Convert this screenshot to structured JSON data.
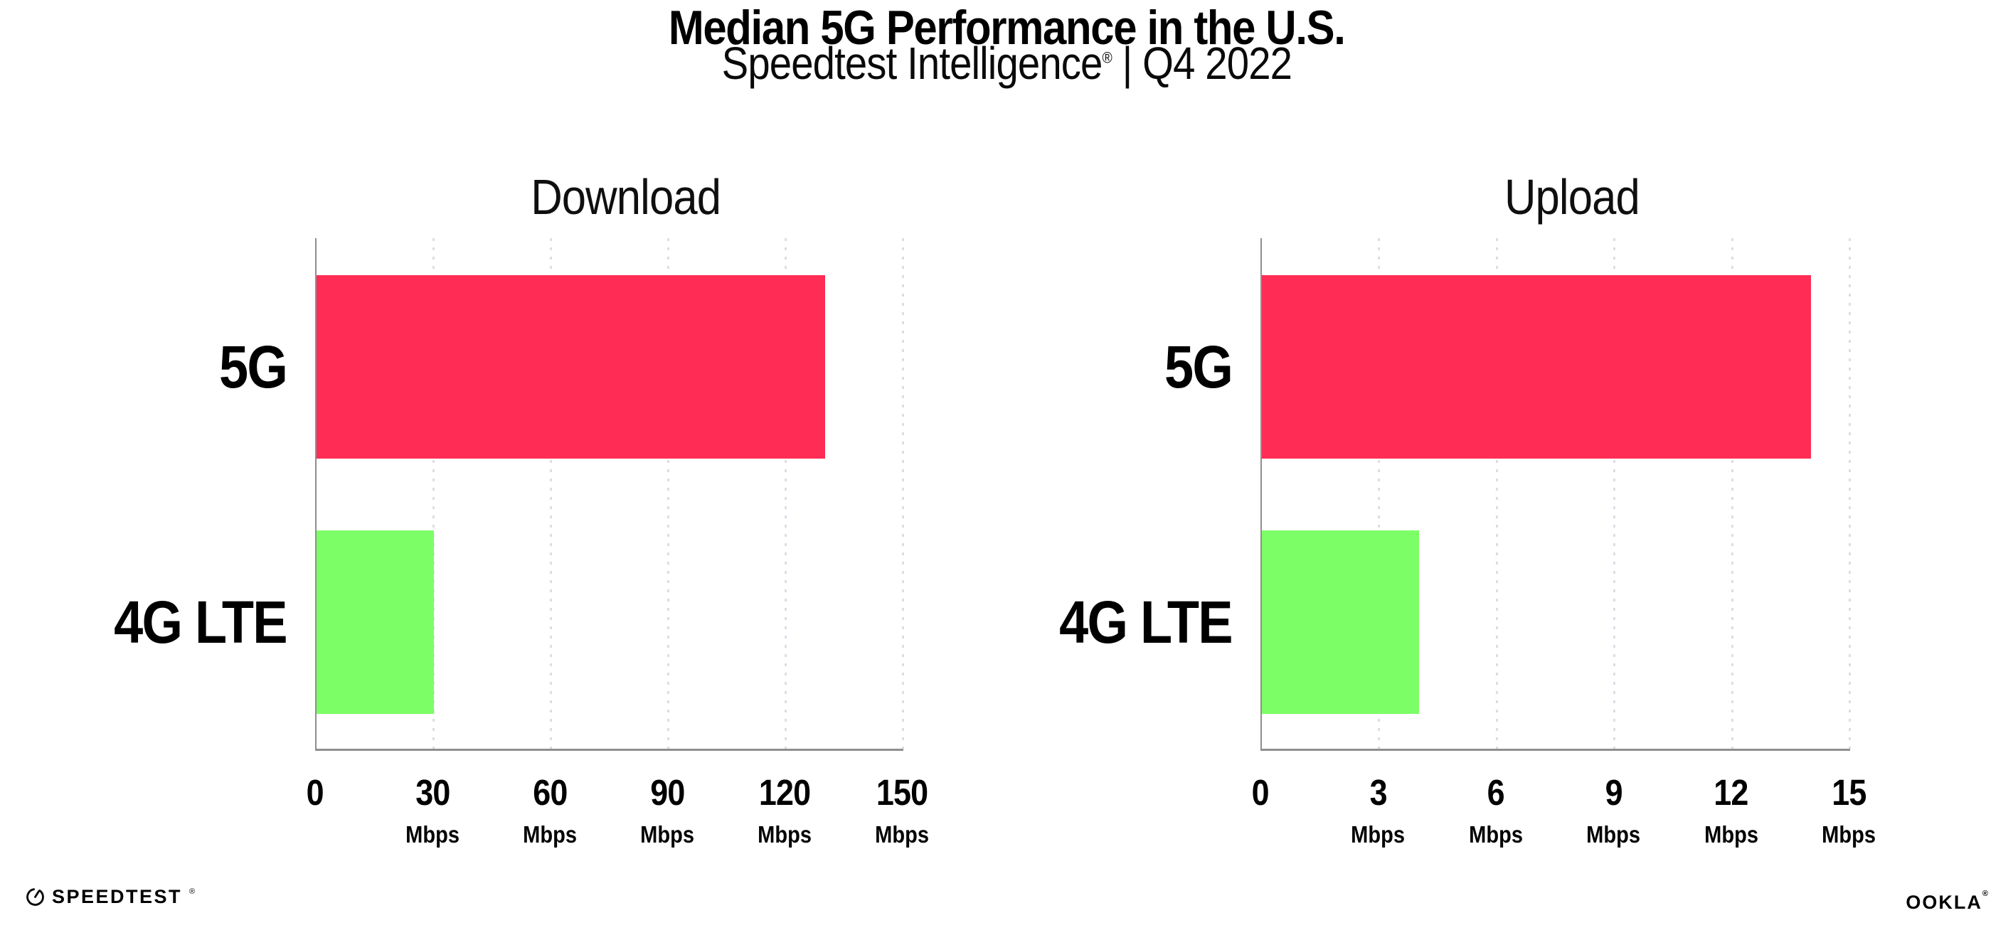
{
  "header": {
    "title": "Median 5G Performance in the U.S.",
    "subtitle": "Speedtest Intelligence",
    "subtitle_mark": "®",
    "subtitle_rest": " | Q4 2022"
  },
  "chart_data": [
    {
      "type": "bar",
      "orientation": "horizontal",
      "title": "Download",
      "categories": [
        "5G",
        "4G LTE"
      ],
      "values": [
        130,
        30
      ],
      "value_unit": "Mbps",
      "xlim": [
        0,
        150
      ],
      "xticks": [
        0,
        30,
        60,
        90,
        120,
        150
      ],
      "xtick_unit_label": "Mbps",
      "grid": "vertical-dotted",
      "legend": "none",
      "bar_colors": [
        "#FF2D55",
        "#7CFE66"
      ]
    },
    {
      "type": "bar",
      "orientation": "horizontal",
      "title": "Upload",
      "categories": [
        "5G",
        "4G LTE"
      ],
      "values": [
        14,
        4
      ],
      "value_unit": "Mbps",
      "xlim": [
        0,
        15
      ],
      "xticks": [
        0,
        3,
        6,
        9,
        12,
        15
      ],
      "xtick_unit_label": "Mbps",
      "grid": "vertical-dotted",
      "legend": "none",
      "bar_colors": [
        "#FF2D55",
        "#7CFE66"
      ]
    }
  ],
  "footer": {
    "speedtest_logo": "SPEEDTEST",
    "speedtest_mark": "®",
    "ookla_logo": "OOKLA",
    "ookla_mark": "®"
  },
  "colors": {
    "bar_5g": "#FF2D55",
    "bar_4g_lte": "#7CFE66",
    "axis": "#8F8F8F",
    "gridline": "#DCDDE9",
    "text": "#000000",
    "background": "#FFFFFF"
  }
}
